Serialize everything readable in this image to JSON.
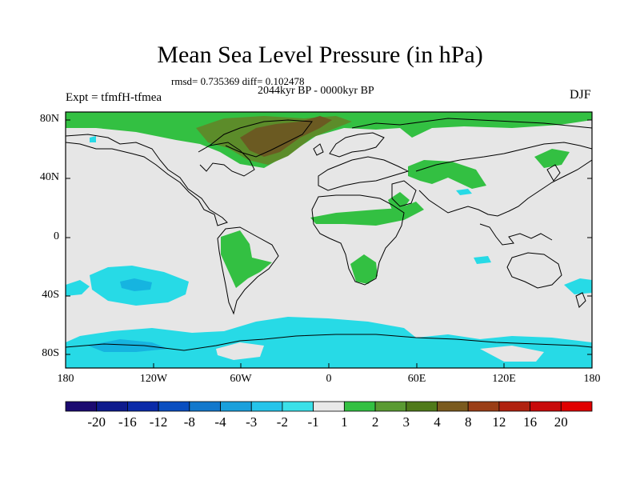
{
  "title": "Mean Sea Level Pressure (in hPa)",
  "stats": "rmsd= 0.735369 diff= 0.102478",
  "period": "2044kyr BP - 0000kyr BP",
  "experiment": "Expt = tfmfH-tfmea",
  "season": "DJF",
  "map": {
    "lat_ticks": [
      "80N",
      "40N",
      "0",
      "40S",
      "80S"
    ],
    "lon_ticks": [
      "180",
      "120W",
      "60W",
      "0",
      "60E",
      "120E",
      "180"
    ]
  },
  "colorbar": {
    "labels": [
      "-20",
      "-16",
      "-12",
      "-8",
      "-4",
      "-3",
      "-2",
      "-1",
      "1",
      "2",
      "3",
      "4",
      "8",
      "12",
      "16",
      "20"
    ],
    "colors": [
      "#1b0a70",
      "#0d1a8c",
      "#0a2aa8",
      "#0a4ec0",
      "#1378cc",
      "#1aa0dc",
      "#25c4ea",
      "#3be0e8",
      "#e8e8e8",
      "#33c042",
      "#5a9a32",
      "#4f7a1a",
      "#7a5a1e",
      "#9a3e16",
      "#b0220f",
      "#c80a0a",
      "#e00000"
    ]
  },
  "colors": {
    "land_fill": "#e6e6e6",
    "neg_light": "#27dae6",
    "neg_mid": "#16b4e0",
    "pos_light": "#33c042",
    "pos_mid": "#5c8c2a",
    "pos_dark": "#6b5a22"
  }
}
